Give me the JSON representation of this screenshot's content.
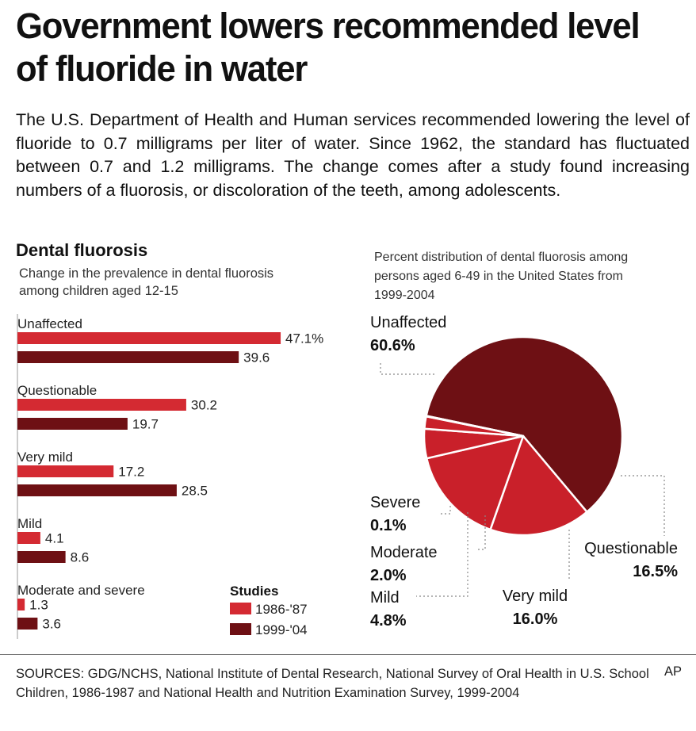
{
  "headline": "Government lowers recommended level of fluoride in water",
  "intro": "The U.S. Department of Health and Human services recommended lowering the level of fluoride to 0.7 milligrams per liter of water. Since 1962, the standard has fluctuated between 0.7 and 1.2 milligrams. The change comes after a study found increasing numbers of a fluorosis, or discoloration of the teeth, among adolescents.",
  "colors": {
    "series_1986": "#d42a32",
    "series_1999": "#6e1014",
    "pie_dark": "#6e1014",
    "pie_red": "#c9202a"
  },
  "chart_data": [
    {
      "type": "bar",
      "orientation": "horizontal",
      "title": "Dental fluorosis",
      "subtitle": "Change in the prevalence in dental fluorosis among children aged 12-15",
      "categories": [
        "Unaffected",
        "Questionable",
        "Very mild",
        "Mild",
        "Moderate and severe"
      ],
      "series": [
        {
          "name": "1986-'87",
          "values": [
            47.1,
            30.2,
            17.2,
            4.1,
            1.3
          ],
          "labels": [
            "47.1%",
            "30.2",
            "17.2",
            "4.1",
            "1.3"
          ]
        },
        {
          "name": "1999-'04",
          "values": [
            39.6,
            19.7,
            28.5,
            8.6,
            3.6
          ],
          "labels": [
            "39.6",
            "19.7",
            "28.5",
            "8.6",
            "3.6"
          ]
        }
      ],
      "legend_title": "Studies",
      "legend_position": "bottom-right"
    },
    {
      "type": "pie",
      "title": "Percent distribution of dental fluorosis among persons aged 6-49 in the United States from 1999-2004",
      "slices": [
        {
          "label": "Unaffected",
          "value": 60.6,
          "value_label": "60.6%"
        },
        {
          "label": "Questionable",
          "value": 16.5,
          "value_label": "16.5%"
        },
        {
          "label": "Very mild",
          "value": 16.0,
          "value_label": "16.0%"
        },
        {
          "label": "Mild",
          "value": 4.8,
          "value_label": "4.8%"
        },
        {
          "label": "Moderate",
          "value": 2.0,
          "value_label": "2.0%"
        },
        {
          "label": "Severe",
          "value": 0.1,
          "value_label": "0.1%"
        }
      ]
    }
  ],
  "footer": {
    "source": "SOURCES: GDG/NCHS, National Institute of Dental Research, National Survey of Oral Health in U.S. School Children, 1986-1987 and National Health and Nutrition Examination Survey, 1999-2004",
    "credit": "AP"
  }
}
